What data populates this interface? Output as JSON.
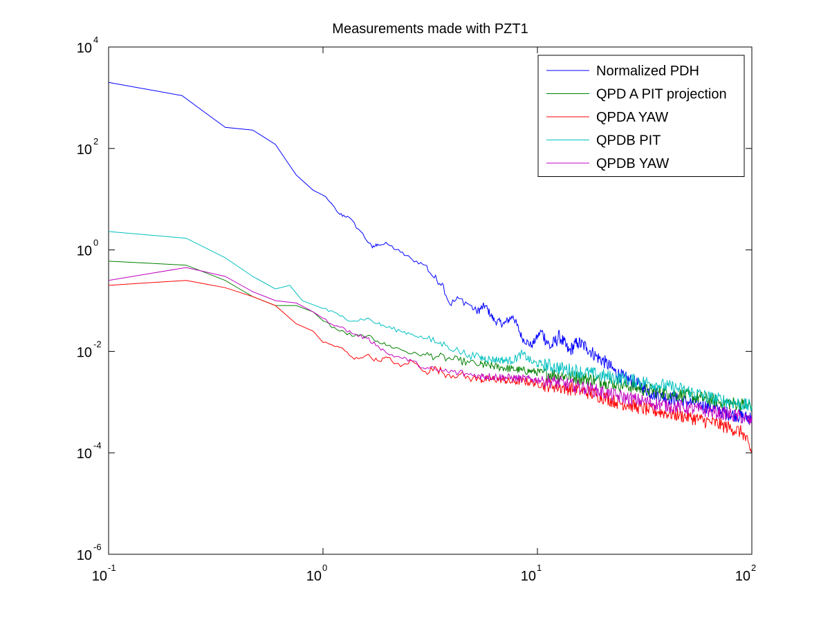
{
  "chart_data": {
    "type": "line",
    "title": "Measurements made with PZT1",
    "xlabel": "",
    "ylabel": "",
    "x_scale": "log",
    "y_scale": "log",
    "xlim": [
      0.1,
      100
    ],
    "ylim": [
      1e-06,
      10000
    ],
    "grid": false,
    "legend_position": "top-right",
    "x_ticks": [
      {
        "base": "10",
        "exp": "-1"
      },
      {
        "base": "10",
        "exp": "0"
      },
      {
        "base": "10",
        "exp": "1"
      },
      {
        "base": "10",
        "exp": "2"
      }
    ],
    "y_ticks": [
      {
        "base": "10",
        "exp": "-6"
      },
      {
        "base": "10",
        "exp": "-4"
      },
      {
        "base": "10",
        "exp": "-2"
      },
      {
        "base": "10",
        "exp": "0"
      },
      {
        "base": "10",
        "exp": "2"
      },
      {
        "base": "10",
        "exp": "4"
      }
    ],
    "series": [
      {
        "name": "Normalized PDH",
        "color": "#0000ff",
        "points": [
          [
            0.1,
            2000
          ],
          [
            0.22,
            1100
          ],
          [
            0.35,
            260
          ],
          [
            0.47,
            230
          ],
          [
            0.6,
            120
          ],
          [
            0.75,
            30
          ],
          [
            0.9,
            15
          ],
          [
            1.0,
            12
          ],
          [
            1.2,
            5
          ],
          [
            1.3,
            4.6
          ],
          [
            1.5,
            2.3
          ],
          [
            1.7,
            1.1
          ],
          [
            1.8,
            1.3
          ],
          [
            2.0,
            1.3
          ],
          [
            2.3,
            0.9
          ],
          [
            2.6,
            0.65
          ],
          [
            3.0,
            0.5
          ],
          [
            3.3,
            0.28
          ],
          [
            3.6,
            0.22
          ],
          [
            3.9,
            0.085
          ],
          [
            4.3,
            0.11
          ],
          [
            4.8,
            0.085
          ],
          [
            5.2,
            0.06
          ],
          [
            5.7,
            0.08
          ],
          [
            6.3,
            0.04
          ],
          [
            7.0,
            0.035
          ],
          [
            7.7,
            0.05
          ],
          [
            8.5,
            0.018
          ],
          [
            9.4,
            0.013
          ],
          [
            10.4,
            0.025
          ],
          [
            11.5,
            0.012
          ],
          [
            12.7,
            0.02
          ],
          [
            14.0,
            0.01
          ],
          [
            15.4,
            0.015
          ],
          [
            17.0,
            0.012
          ],
          [
            18.8,
            0.008
          ],
          [
            20.8,
            0.006
          ],
          [
            23.0,
            0.004
          ],
          [
            25.4,
            0.003
          ],
          [
            28.0,
            0.0025
          ],
          [
            31.0,
            0.002
          ],
          [
            34.0,
            0.0015
          ],
          [
            38.0,
            0.0013
          ],
          [
            42.0,
            0.0012
          ],
          [
            46.0,
            0.0011
          ],
          [
            51.0,
            0.001
          ],
          [
            57.0,
            0.0009
          ],
          [
            63.0,
            0.0008
          ],
          [
            70.0,
            0.0007
          ],
          [
            77.0,
            0.0006
          ],
          [
            85.0,
            0.00055
          ],
          [
            93.0,
            0.0005
          ],
          [
            100.0,
            0.0005
          ]
        ]
      },
      {
        "name": "QPD A PIT projection",
        "color": "#008000",
        "points": [
          [
            0.1,
            0.6
          ],
          [
            0.23,
            0.5
          ],
          [
            0.35,
            0.25
          ],
          [
            0.47,
            0.12
          ],
          [
            0.6,
            0.08
          ],
          [
            0.75,
            0.08
          ],
          [
            0.9,
            0.06
          ],
          [
            1.0,
            0.04
          ],
          [
            1.2,
            0.025
          ],
          [
            1.4,
            0.02
          ],
          [
            1.6,
            0.02
          ],
          [
            1.8,
            0.016
          ],
          [
            2.0,
            0.013
          ],
          [
            2.3,
            0.011
          ],
          [
            2.6,
            0.009
          ],
          [
            3.0,
            0.0085
          ],
          [
            3.4,
            0.008
          ],
          [
            3.8,
            0.0072
          ],
          [
            4.3,
            0.0066
          ],
          [
            4.8,
            0.006
          ],
          [
            5.4,
            0.0055
          ],
          [
            6.0,
            0.0052
          ],
          [
            6.8,
            0.0048
          ],
          [
            7.6,
            0.0045
          ],
          [
            8.5,
            0.0042
          ],
          [
            9.5,
            0.004
          ],
          [
            10.6,
            0.0038
          ],
          [
            11.9,
            0.0035
          ],
          [
            13.3,
            0.0033
          ],
          [
            14.9,
            0.0031
          ],
          [
            16.7,
            0.0029
          ],
          [
            18.7,
            0.0027
          ],
          [
            20.9,
            0.0025
          ],
          [
            23.4,
            0.0023
          ],
          [
            26.2,
            0.0021
          ],
          [
            29.3,
            0.0019
          ],
          [
            32.8,
            0.0017
          ],
          [
            36.7,
            0.0016
          ],
          [
            41.1,
            0.0015
          ],
          [
            46.0,
            0.0014
          ],
          [
            51.5,
            0.0013
          ],
          [
            57.7,
            0.0012
          ],
          [
            64.6,
            0.0011
          ],
          [
            72.3,
            0.001
          ],
          [
            80.9,
            0.00095
          ],
          [
            90.6,
            0.0009
          ],
          [
            100.0,
            0.00085
          ]
        ]
      },
      {
        "name": "QPDA YAW",
        "color": "#ff0000",
        "points": [
          [
            0.1,
            0.2
          ],
          [
            0.23,
            0.25
          ],
          [
            0.35,
            0.18
          ],
          [
            0.47,
            0.12
          ],
          [
            0.6,
            0.08
          ],
          [
            0.75,
            0.035
          ],
          [
            0.9,
            0.025
          ],
          [
            1.0,
            0.015
          ],
          [
            1.2,
            0.012
          ],
          [
            1.4,
            0.007
          ],
          [
            1.6,
            0.0085
          ],
          [
            1.8,
            0.0065
          ],
          [
            2.0,
            0.0075
          ],
          [
            2.3,
            0.005
          ],
          [
            2.6,
            0.0065
          ],
          [
            3.0,
            0.004
          ],
          [
            3.4,
            0.0045
          ],
          [
            3.8,
            0.0035
          ],
          [
            4.3,
            0.0035
          ],
          [
            4.8,
            0.003
          ],
          [
            5.4,
            0.0028
          ],
          [
            6.0,
            0.0028
          ],
          [
            6.8,
            0.0028
          ],
          [
            7.6,
            0.0025
          ],
          [
            8.5,
            0.0026
          ],
          [
            9.5,
            0.0024
          ],
          [
            10.6,
            0.0022
          ],
          [
            11.9,
            0.0021
          ],
          [
            13.3,
            0.0019
          ],
          [
            14.9,
            0.0018
          ],
          [
            16.7,
            0.0016
          ],
          [
            18.7,
            0.0014
          ],
          [
            20.9,
            0.0012
          ],
          [
            23.4,
            0.001
          ],
          [
            26.2,
            0.0009
          ],
          [
            29.3,
            0.0008
          ],
          [
            32.8,
            0.0007
          ],
          [
            36.7,
            0.00065
          ],
          [
            41.1,
            0.0006
          ],
          [
            46.0,
            0.00055
          ],
          [
            51.5,
            0.0005
          ],
          [
            57.7,
            0.00045
          ],
          [
            64.6,
            0.0004
          ],
          [
            72.3,
            0.00035
          ],
          [
            80.9,
            0.0003
          ],
          [
            90.6,
            0.00025
          ],
          [
            100.0,
            0.0001
          ]
        ]
      },
      {
        "name": "QPDB PIT",
        "color": "#00bfbf",
        "points": [
          [
            0.1,
            2.3
          ],
          [
            0.23,
            1.7
          ],
          [
            0.35,
            0.7
          ],
          [
            0.47,
            0.3
          ],
          [
            0.6,
            0.17
          ],
          [
            0.7,
            0.2
          ],
          [
            0.8,
            0.1
          ],
          [
            1.0,
            0.07
          ],
          [
            1.2,
            0.05
          ],
          [
            1.4,
            0.04
          ],
          [
            1.6,
            0.045
          ],
          [
            1.8,
            0.035
          ],
          [
            2.0,
            0.03
          ],
          [
            2.3,
            0.025
          ],
          [
            2.6,
            0.022
          ],
          [
            3.0,
            0.018
          ],
          [
            3.4,
            0.015
          ],
          [
            3.8,
            0.013
          ],
          [
            4.3,
            0.01
          ],
          [
            4.8,
            0.0085
          ],
          [
            5.4,
            0.0075
          ],
          [
            6.0,
            0.007
          ],
          [
            6.8,
            0.0068
          ],
          [
            7.6,
            0.0065
          ],
          [
            8.5,
            0.009
          ],
          [
            9.5,
            0.006
          ],
          [
            10.6,
            0.0055
          ],
          [
            11.9,
            0.005
          ],
          [
            13.3,
            0.0045
          ],
          [
            14.9,
            0.0042
          ],
          [
            16.7,
            0.0038
          ],
          [
            18.7,
            0.0035
          ],
          [
            20.9,
            0.0032
          ],
          [
            23.4,
            0.003
          ],
          [
            26.2,
            0.0028
          ],
          [
            29.3,
            0.0026
          ],
          [
            32.8,
            0.0024
          ],
          [
            36.7,
            0.0022
          ],
          [
            41.1,
            0.002
          ],
          [
            46.0,
            0.0018
          ],
          [
            51.5,
            0.0016
          ],
          [
            57.7,
            0.0014
          ],
          [
            64.6,
            0.0012
          ],
          [
            72.3,
            0.0011
          ],
          [
            80.9,
            0.001
          ],
          [
            90.6,
            0.0009
          ],
          [
            100.0,
            0.0008
          ]
        ]
      },
      {
        "name": "QPDB YAW",
        "color": "#bf00bf",
        "points": [
          [
            0.1,
            0.25
          ],
          [
            0.23,
            0.45
          ],
          [
            0.35,
            0.3
          ],
          [
            0.47,
            0.15
          ],
          [
            0.6,
            0.1
          ],
          [
            0.75,
            0.09
          ],
          [
            0.9,
            0.06
          ],
          [
            1.0,
            0.045
          ],
          [
            1.2,
            0.03
          ],
          [
            1.4,
            0.022
          ],
          [
            1.6,
            0.018
          ],
          [
            1.8,
            0.013
          ],
          [
            2.0,
            0.009
          ],
          [
            2.3,
            0.0075
          ],
          [
            2.6,
            0.0065
          ],
          [
            3.0,
            0.0045
          ],
          [
            3.4,
            0.0042
          ],
          [
            3.8,
            0.004
          ],
          [
            4.3,
            0.0038
          ],
          [
            4.8,
            0.0035
          ],
          [
            5.4,
            0.0033
          ],
          [
            6.0,
            0.0032
          ],
          [
            6.8,
            0.0031
          ],
          [
            7.6,
            0.003
          ],
          [
            8.5,
            0.0029
          ],
          [
            9.5,
            0.0028
          ],
          [
            10.6,
            0.0027
          ],
          [
            11.9,
            0.0025
          ],
          [
            13.3,
            0.0023
          ],
          [
            14.9,
            0.0021
          ],
          [
            16.7,
            0.0019
          ],
          [
            18.7,
            0.0017
          ],
          [
            20.9,
            0.0015
          ],
          [
            23.4,
            0.0013
          ],
          [
            26.2,
            0.0012
          ],
          [
            29.3,
            0.0011
          ],
          [
            32.8,
            0.001
          ],
          [
            36.7,
            0.0009
          ],
          [
            41.1,
            0.00085
          ],
          [
            46.0,
            0.0008
          ],
          [
            51.5,
            0.00075
          ],
          [
            57.7,
            0.0007
          ],
          [
            64.6,
            0.00065
          ],
          [
            72.3,
            0.0006
          ],
          [
            80.9,
            0.00055
          ],
          [
            90.6,
            0.0005
          ],
          [
            100.0,
            0.0004
          ]
        ]
      }
    ]
  }
}
